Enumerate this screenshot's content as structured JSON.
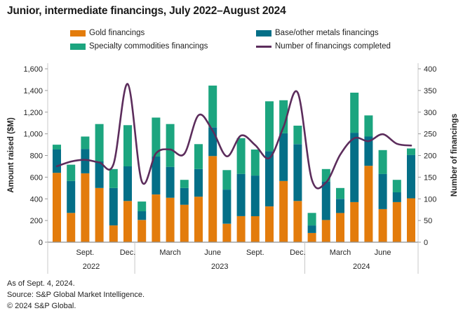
{
  "title": "Junior, intermediate financings, July 2022–August 2024",
  "legend": [
    {
      "label": "Gold financings",
      "color": "#E37C0C",
      "type": "swatch"
    },
    {
      "label": "Base/other metals financings",
      "color": "#046F87",
      "type": "swatch"
    },
    {
      "label": "Specialty commodities financings",
      "color": "#1CA57F",
      "type": "swatch"
    },
    {
      "label": "Number of financings completed",
      "color": "#5C2D5C",
      "type": "line"
    }
  ],
  "y_left": {
    "title": "Amount raised ($M)",
    "min": 0,
    "max": 1600,
    "ticks": [
      "0",
      "200",
      "400",
      "600",
      "800",
      "1,000",
      "1,200",
      "1,400",
      "1,600"
    ]
  },
  "y_right": {
    "title": "Number of financings",
    "min": 0,
    "max": 400,
    "ticks": [
      "0",
      "50",
      "100",
      "150",
      "200",
      "250",
      "300",
      "350",
      "400"
    ]
  },
  "x_axis": {
    "month_ticks": [
      {
        "label": "Sept.",
        "index": 2
      },
      {
        "label": "Dec.",
        "index": 5
      },
      {
        "label": "March",
        "index": 8
      },
      {
        "label": "June",
        "index": 11
      },
      {
        "label": "Sept.",
        "index": 14
      },
      {
        "label": "Dec.",
        "index": 17
      },
      {
        "label": "March",
        "index": 20
      },
      {
        "label": "June",
        "index": 23
      }
    ],
    "year_groups": [
      {
        "label": "2022",
        "start": 0,
        "end": 5
      },
      {
        "label": "2023",
        "start": 6,
        "end": 17
      },
      {
        "label": "2024",
        "start": 18,
        "end": 25
      }
    ]
  },
  "chart_data": {
    "type": "bar",
    "subtype": "stacked-bars-with-line",
    "months": [
      "July 2022",
      "Aug. 2022",
      "Sept. 2022",
      "Oct. 2022",
      "Nov. 2022",
      "Dec. 2022",
      "Jan. 2023",
      "Feb. 2023",
      "March 2023",
      "April 2023",
      "May 2023",
      "June 2023",
      "July 2023",
      "Aug. 2023",
      "Sept. 2023",
      "Oct. 2023",
      "Nov. 2023",
      "Dec. 2023",
      "Jan. 2024",
      "Feb. 2024",
      "March 2024",
      "April 2024",
      "May 2024",
      "June 2024",
      "July 2024",
      "Aug. 2024"
    ],
    "series": [
      {
        "name": "Gold financings",
        "color": "#E37C0C",
        "values": [
          640,
          270,
          635,
          500,
          155,
          380,
          205,
          440,
          410,
          345,
          420,
          795,
          170,
          240,
          240,
          330,
          565,
          380,
          85,
          205,
          270,
          370,
          705,
          305,
          370,
          405
        ]
      },
      {
        "name": "Base/other metals financings",
        "color": "#046F87",
        "values": [
          215,
          295,
          225,
          245,
          345,
          320,
          80,
          350,
          285,
          155,
          255,
          265,
          315,
          390,
          375,
          510,
          440,
          525,
          70,
          355,
          130,
          640,
          270,
          325,
          90,
          400
        ]
      },
      {
        "name": "Specialty commodities financings",
        "color": "#1CA57F",
        "values": [
          45,
          150,
          115,
          345,
          175,
          380,
          90,
          360,
          395,
          75,
          230,
          385,
          180,
          330,
          240,
          460,
          305,
          170,
          115,
          115,
          100,
          370,
          195,
          220,
          115,
          60
        ]
      }
    ],
    "line_series": {
      "name": "Number of financings completed",
      "color": "#5C2D5C",
      "values": [
        175,
        186,
        190,
        184,
        180,
        365,
        140,
        205,
        214,
        204,
        293,
        257,
        198,
        246,
        224,
        194,
        266,
        345,
        144,
        138,
        202,
        240,
        233,
        249,
        227,
        223
      ]
    },
    "ylabel_left": "Amount raised ($M)",
    "ylabel_right": "Number of financings",
    "ylim_left": [
      0,
      1600
    ],
    "ylim_right": [
      0,
      400
    ],
    "grid": false,
    "legend_position": "top"
  },
  "footer": {
    "line1": "As of Sept. 4, 2024.",
    "line2": "Source: S&P Global Market Intelligence.",
    "line3": "© 2024 S&P Global."
  }
}
